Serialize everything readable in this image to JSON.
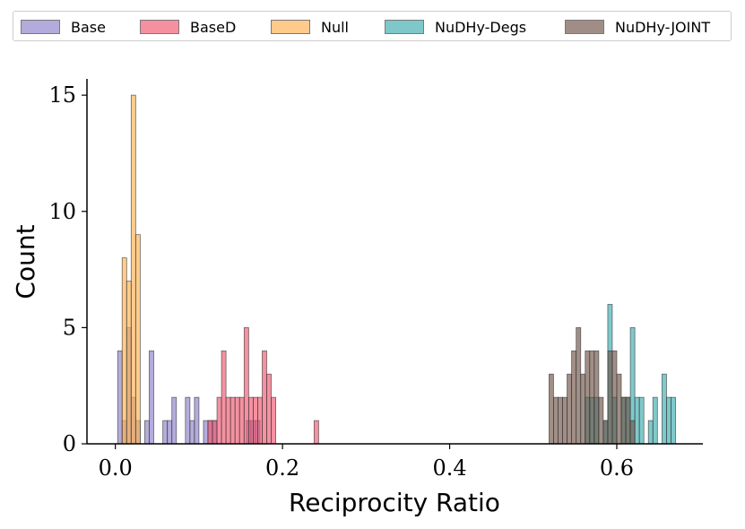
{
  "chart_data": {
    "type": "histogram",
    "title": "",
    "xlabel": "Reciprocity Ratio",
    "ylabel": "Count",
    "xlim": [
      -0.034,
      0.703
    ],
    "ylim": [
      0,
      15.7
    ],
    "x_ticks": [
      0.0,
      0.2,
      0.4,
      0.6
    ],
    "x_tick_labels": [
      "0.0",
      "0.2",
      "0.4",
      "0.6"
    ],
    "y_ticks": [
      0,
      5,
      10,
      15
    ],
    "y_tick_labels": [
      "0",
      "5",
      "10",
      "15"
    ],
    "bin_width": 0.00541,
    "grid": false,
    "legend_position": "top",
    "series": [
      {
        "name": "Base",
        "color": "#8c7fc8",
        "bin_starts": [
          0.0027,
          0.0081,
          0.0135,
          0.0189,
          0.0243,
          0.0351,
          0.0405,
          0.0568,
          0.0622,
          0.0676,
          0.0838,
          0.0892,
          0.0946,
          0.1054,
          0.1108,
          0.1162,
          0.1568,
          0.1622,
          0.1676
        ],
        "counts": [
          4,
          1,
          5,
          2,
          1,
          1,
          4,
          1,
          1,
          2,
          2,
          1,
          2,
          1,
          1,
          1,
          1,
          1,
          1
        ]
      },
      {
        "name": "BaseD",
        "color": "#f0566e",
        "bin_starts": [
          0.1108,
          0.1162,
          0.1216,
          0.127,
          0.1324,
          0.1378,
          0.1432,
          0.1486,
          0.1541,
          0.1595,
          0.1649,
          0.1703,
          0.1757,
          0.1811,
          0.1865,
          0.2378
        ],
        "counts": [
          1,
          1,
          2,
          4,
          2,
          2,
          2,
          2,
          5,
          2,
          2,
          2,
          4,
          3,
          2,
          1
        ]
      },
      {
        "name": "Null",
        "color": "#ffb04f",
        "bin_starts": [
          0.0081,
          0.0135,
          0.0189,
          0.0243
        ],
        "counts": [
          8,
          7,
          15,
          9
        ]
      },
      {
        "name": "NuDHy-Degs",
        "color": "#3aacaf",
        "bin_starts": [
          0.5622,
          0.5676,
          0.573,
          0.5838,
          0.5892,
          0.5946,
          0.6054,
          0.6108,
          0.6162,
          0.6216,
          0.627,
          0.6378,
          0.6432,
          0.6541,
          0.6595,
          0.6649
        ],
        "counts": [
          2,
          2,
          2,
          1,
          6,
          2,
          2,
          2,
          5,
          2,
          2,
          1,
          2,
          3,
          2,
          2
        ]
      },
      {
        "name": "NuDHy-JOINT",
        "color": "#6e5346",
        "bin_starts": [
          0.5189,
          0.5243,
          0.5297,
          0.5351,
          0.5405,
          0.5459,
          0.5514,
          0.5568,
          0.5622,
          0.5676,
          0.573,
          0.5784,
          0.5838,
          0.5892,
          0.5946,
          0.6,
          0.6054,
          0.6108,
          0.6162
        ],
        "counts": [
          3,
          2,
          2,
          2,
          3,
          4,
          5,
          3,
          4,
          4,
          4,
          2,
          1,
          4,
          4,
          3,
          2,
          2,
          1
        ]
      }
    ]
  }
}
